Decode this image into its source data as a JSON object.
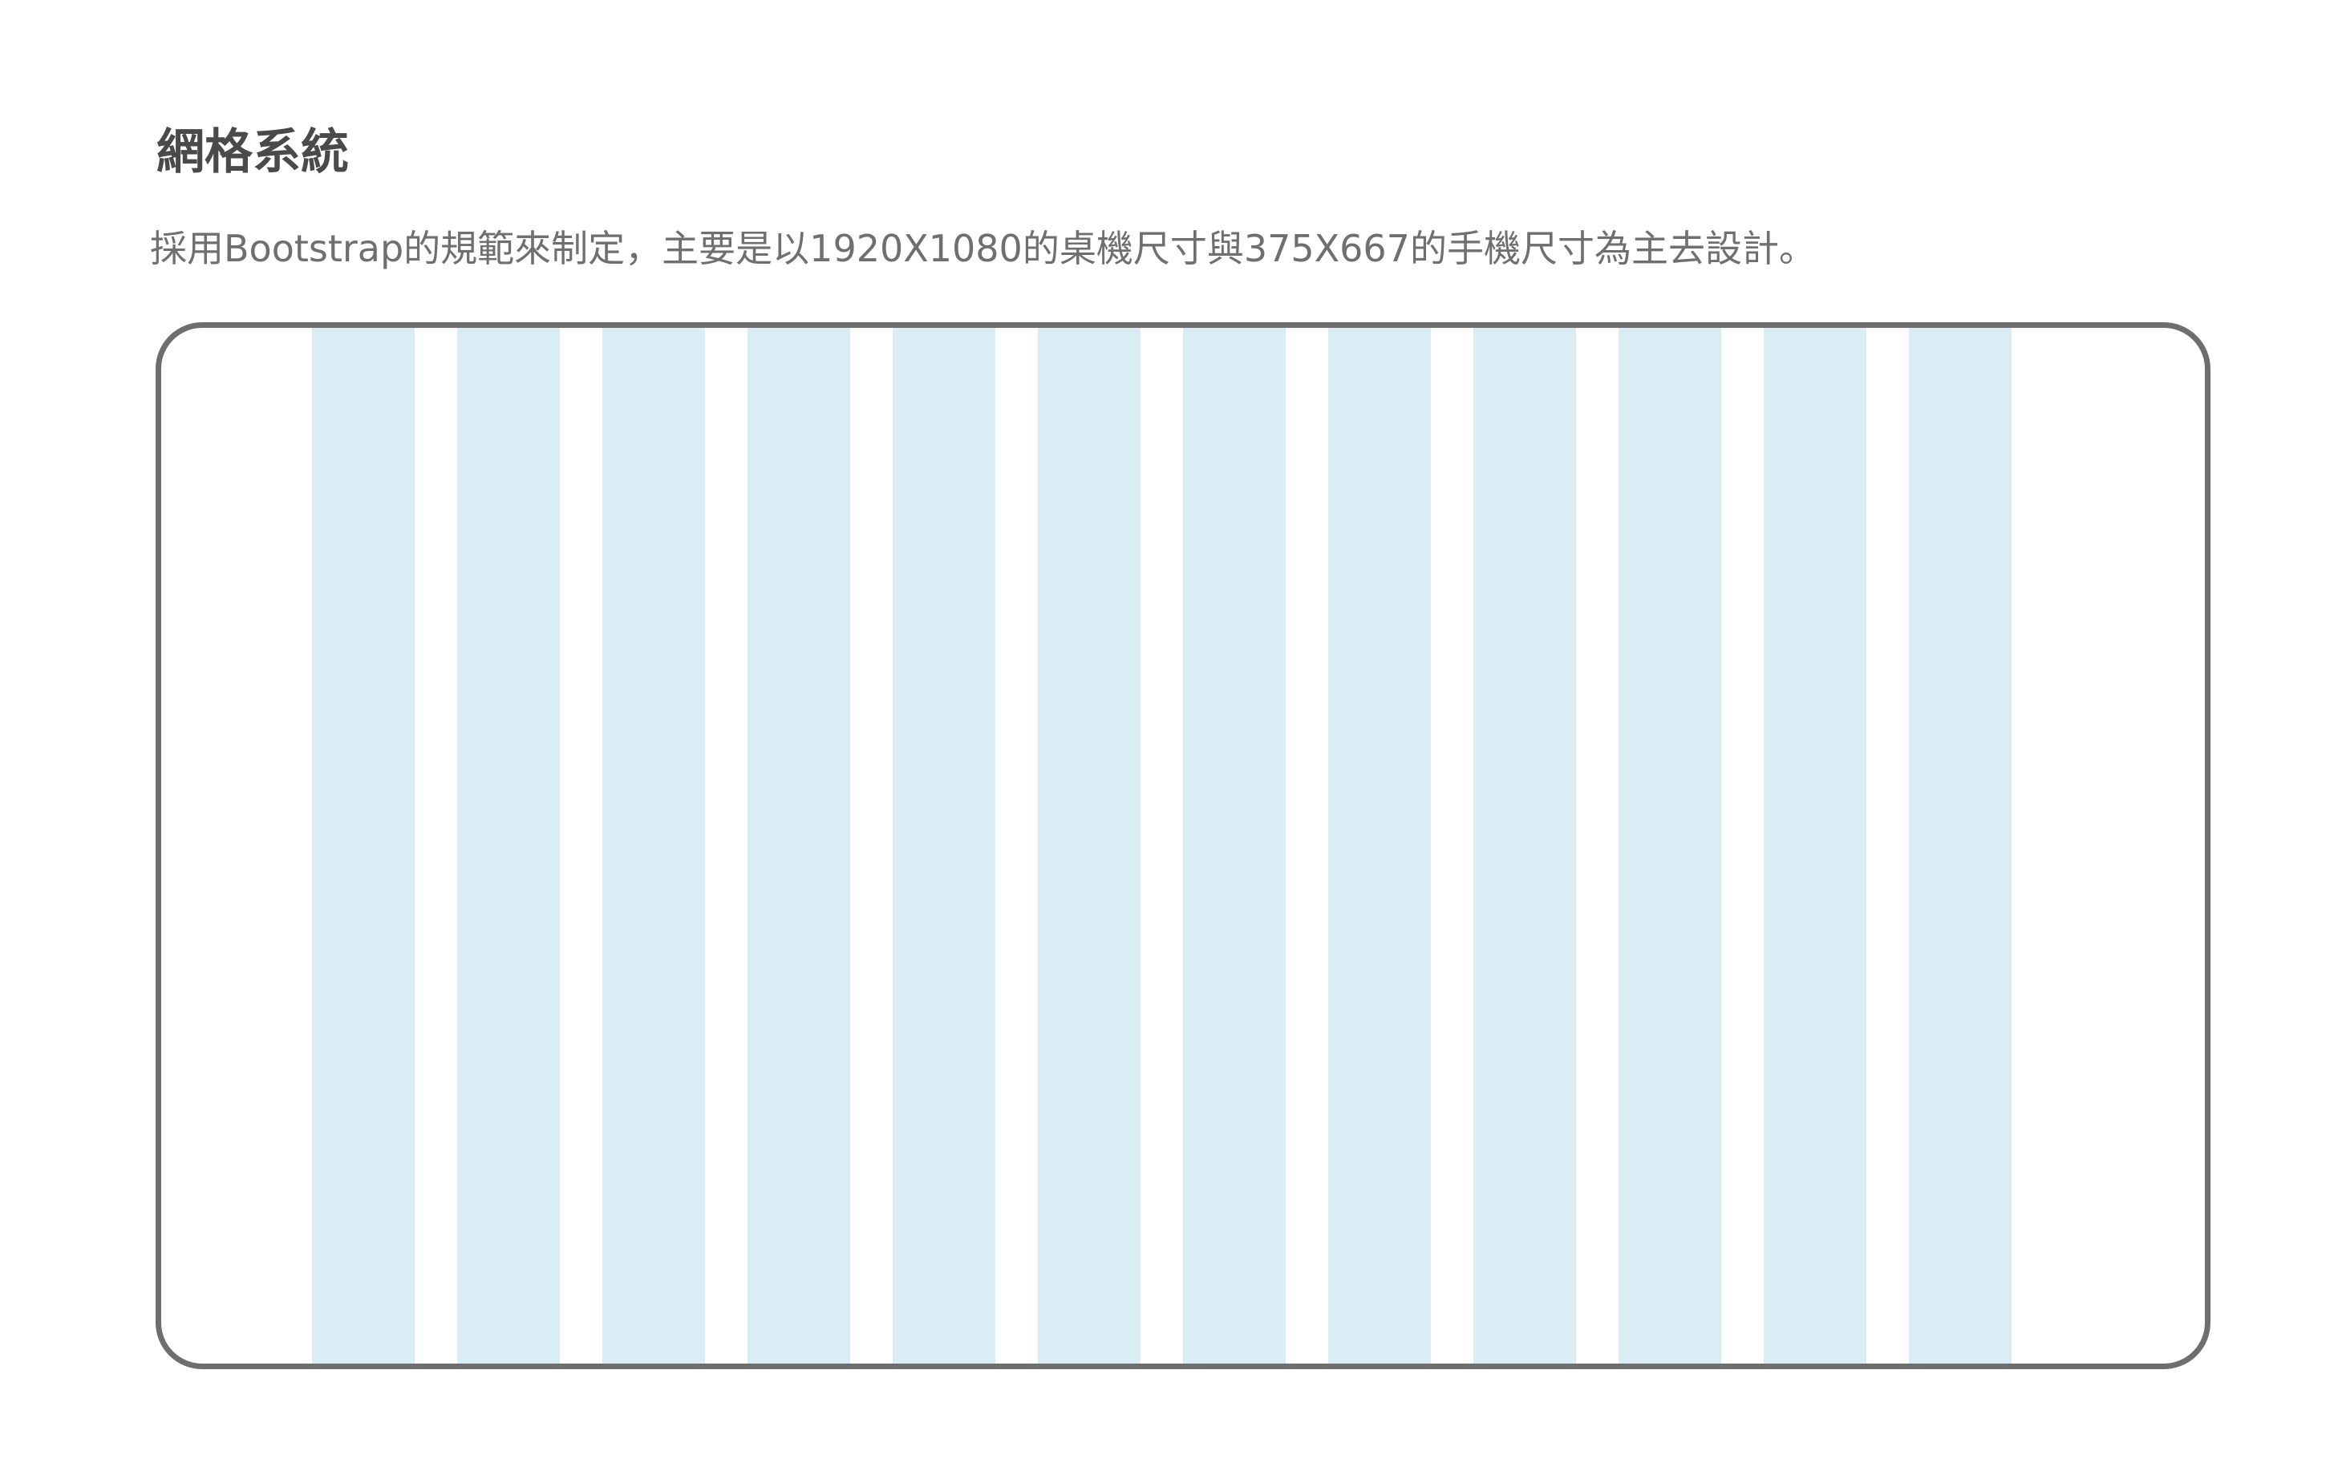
{
  "section": {
    "title": "網格系統",
    "description": "採用Bootstrap的規範來制定，主要是以1920X1080的桌機尺寸與375X667的手機尺寸為主去設計。"
  },
  "grid": {
    "column_count": 12,
    "column_color": "#dbedf4",
    "frame_border_color": "#6e6e6e"
  }
}
